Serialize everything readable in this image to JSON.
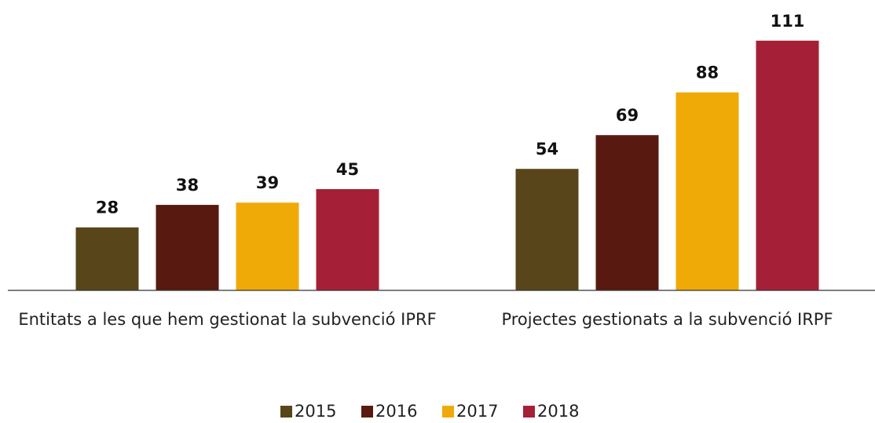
{
  "chart_data": {
    "type": "bar",
    "categories": [
      "Entitats a les que hem gestionat la subvenció IPRF",
      "Projectes gestionats a la subvenció IRPF"
    ],
    "series": [
      {
        "name": "2015",
        "color": "#58451a",
        "values": [
          28,
          54
        ]
      },
      {
        "name": "2016",
        "color": "#581a10",
        "values": [
          38,
          69
        ]
      },
      {
        "name": "2017",
        "color": "#efaa07",
        "values": [
          39,
          88
        ]
      },
      {
        "name": "2018",
        "color": "#a52036",
        "values": [
          45,
          111
        ]
      }
    ],
    "ylim": [
      0,
      120
    ],
    "legend": "bottom"
  }
}
